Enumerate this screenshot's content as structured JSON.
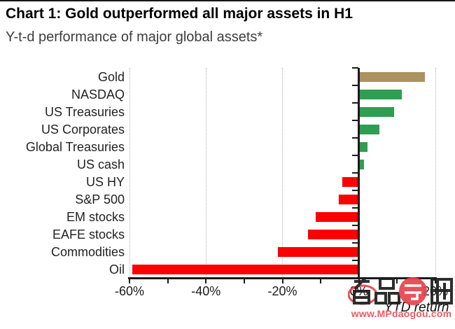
{
  "page": {
    "title": "Chart 1: Gold outperformed all major assets in H1",
    "subtitle": "Y-t-d performance of major global assets*"
  },
  "chart_data": {
    "type": "bar",
    "orientation": "horizontal",
    "title": "Chart 1: Gold outperformed all major assets in H1",
    "subtitle": "Y-t-d performance of major global assets*",
    "xlabel": "YTD return",
    "ylabel": "",
    "xlim": [
      -60,
      20
    ],
    "minor_tick_step": 10,
    "label_step": 20,
    "gridlines_at": [
      -60,
      -40,
      -20,
      20
    ],
    "grid_style": "dotted-vertical",
    "legend": "none",
    "categories": [
      "Gold",
      "NASDAQ",
      "US Treasuries",
      "US Corporates",
      "Global Treasuries",
      "US cash",
      "US HY",
      "S&P 500",
      "EM stocks",
      "EAFE stocks",
      "Commodities",
      "Oil"
    ],
    "values": [
      17,
      11,
      9,
      5,
      2,
      1,
      -4,
      -5,
      -11,
      -13,
      -21,
      -59
    ],
    "bar_colors": [
      "#ab9260",
      "#2f9e52",
      "#2f9e52",
      "#2f9e52",
      "#2f9e52",
      "#2f9e52",
      "#fb0200",
      "#fb0200",
      "#fb0200",
      "#fb0200",
      "#fb0200",
      "#fb0200"
    ],
    "x_tick_labels": [
      "-60%",
      "-40%",
      "-20%",
      "0%",
      "20%"
    ]
  },
  "colors": {
    "gold": "#ab9260",
    "positive_green": "#2f9e52",
    "negative_red": "#fb0200",
    "axis": "#1a1a1a",
    "grid": "#b0b0b0",
    "watermark_red": "#e8434b"
  },
  "watermark": {
    "logo_text": "名品导购",
    "url": "www.MPdaogou.com"
  }
}
